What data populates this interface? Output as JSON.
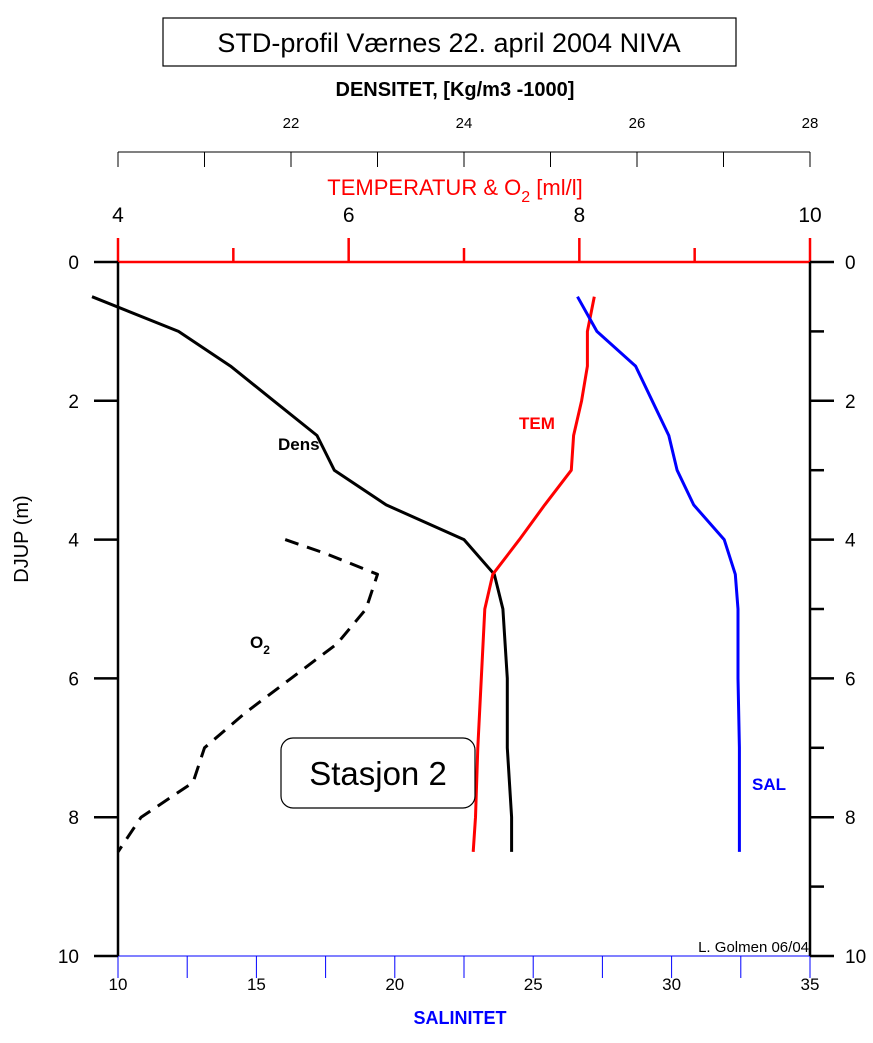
{
  "chart_data": {
    "type": "line",
    "title": "STD-profil Værnes 22. april 2004 NIVA",
    "station_label": "Stasjon 2",
    "credit": "L. Golmen 06/04",
    "y_axis": {
      "label": "DJUP (m)",
      "range": [
        0,
        10
      ],
      "reversed": true,
      "ticks": [
        0,
        2,
        4,
        6,
        8,
        10
      ],
      "tick_labels": [
        "0",
        "2",
        "4",
        "6",
        "8",
        "10"
      ]
    },
    "x_axes": {
      "density": {
        "label": "DENSITET, [Kg/m3 -1000]",
        "range": [
          20,
          28
        ],
        "ticks": [
          22,
          24,
          26,
          28
        ],
        "tick_labels": [
          "22",
          "24",
          "26",
          "28"
        ],
        "color": "#000000"
      },
      "temperature_o2": {
        "label_main": "TEMPERATUR & O",
        "label_sub": "2",
        "label_tail": " [ml/l]",
        "range": [
          4,
          10
        ],
        "ticks": [
          4,
          6,
          8,
          10
        ],
        "tick_labels": [
          "4",
          "6",
          "8",
          "10"
        ],
        "color": "#ff0000"
      },
      "salinity": {
        "label": "SALINITET",
        "range": [
          10,
          35
        ],
        "ticks": [
          10,
          15,
          20,
          25,
          30,
          35
        ],
        "tick_labels": [
          "10",
          "15",
          "20",
          "25",
          "30",
          "35"
        ],
        "color": "#0000ff"
      }
    },
    "series": [
      {
        "name": "Dens",
        "axis": "density",
        "color": "#000000",
        "dashed": false,
        "points": [
          [
            19.7,
            0.5
          ],
          [
            20.7,
            1.0
          ],
          [
            21.3,
            1.5
          ],
          [
            21.8,
            2.0
          ],
          [
            22.3,
            2.5
          ],
          [
            22.5,
            3.0
          ],
          [
            23.1,
            3.5
          ],
          [
            24.0,
            4.0
          ],
          [
            24.35,
            4.5
          ],
          [
            24.45,
            5.0
          ],
          [
            24.5,
            6.0
          ],
          [
            24.5,
            7.0
          ],
          [
            24.55,
            8.0
          ],
          [
            24.55,
            8.5
          ]
        ]
      },
      {
        "name": "TEM",
        "axis": "temperature_o2",
        "color": "#ff0000",
        "dashed": false,
        "points": [
          [
            8.13,
            0.5
          ],
          [
            8.07,
            1.0
          ],
          [
            8.07,
            1.5
          ],
          [
            8.02,
            2.0
          ],
          [
            7.95,
            2.5
          ],
          [
            7.93,
            3.0
          ],
          [
            7.7,
            3.5
          ],
          [
            7.48,
            4.0
          ],
          [
            7.25,
            4.5
          ],
          [
            7.18,
            5.0
          ],
          [
            7.15,
            6.0
          ],
          [
            7.12,
            7.0
          ],
          [
            7.1,
            8.0
          ],
          [
            7.08,
            8.5
          ]
        ]
      },
      {
        "name": "SAL",
        "axis": "salinity",
        "color": "#0000ff",
        "dashed": false,
        "points": [
          [
            26.6,
            0.5
          ],
          [
            27.3,
            1.0
          ],
          [
            28.7,
            1.5
          ],
          [
            29.3,
            2.0
          ],
          [
            29.9,
            2.5
          ],
          [
            30.2,
            3.0
          ],
          [
            30.8,
            3.5
          ],
          [
            31.9,
            4.0
          ],
          [
            32.3,
            4.5
          ],
          [
            32.4,
            5.0
          ],
          [
            32.4,
            6.0
          ],
          [
            32.45,
            7.0
          ],
          [
            32.45,
            8.0
          ],
          [
            32.45,
            8.5
          ]
        ]
      },
      {
        "name": "O",
        "name_sub": "2",
        "axis": "temperature_o2",
        "color": "#000000",
        "dashed": true,
        "points": [
          [
            5.45,
            4.0
          ],
          [
            5.8,
            4.2
          ],
          [
            6.25,
            4.5
          ],
          [
            6.15,
            5.0
          ],
          [
            5.9,
            5.5
          ],
          [
            5.5,
            6.0
          ],
          [
            5.1,
            6.5
          ],
          [
            4.75,
            7.0
          ],
          [
            4.65,
            7.5
          ],
          [
            4.2,
            8.0
          ],
          [
            4.0,
            8.5
          ]
        ]
      }
    ],
    "series_labels": {
      "dens": "Dens",
      "tem": "TEM",
      "sal": "SAL",
      "o2_main": "O",
      "o2_sub": "2"
    }
  }
}
